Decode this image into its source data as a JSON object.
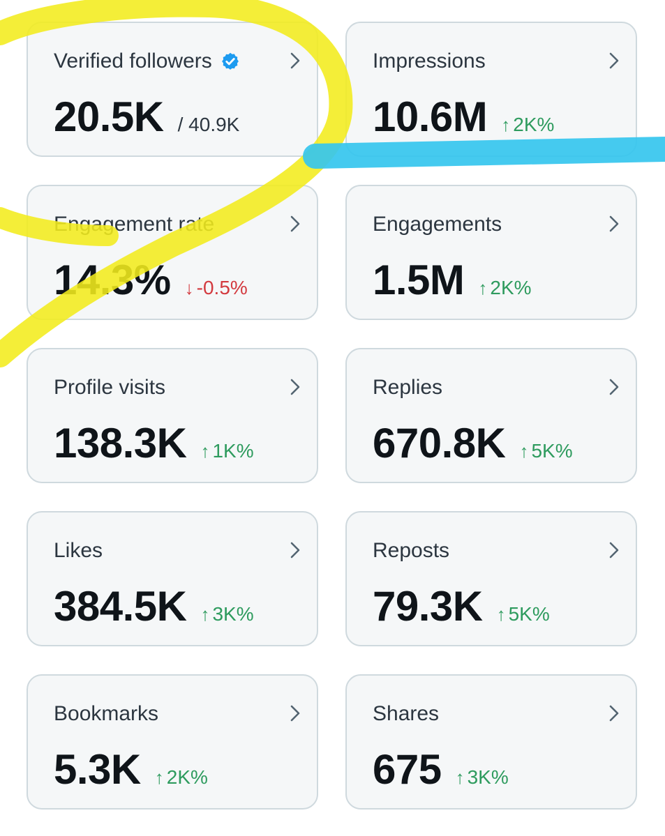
{
  "metrics": [
    {
      "label": "Verified followers",
      "value": "20.5K",
      "sub": "/ 40.9K",
      "verified": true
    },
    {
      "label": "Impressions",
      "value": "10.6M",
      "delta": "2K%",
      "direction": "up"
    },
    {
      "label": "Engagement rate",
      "value": "14.3%",
      "delta": "-0.5%",
      "direction": "down"
    },
    {
      "label": "Engagements",
      "value": "1.5M",
      "delta": "2K%",
      "direction": "up"
    },
    {
      "label": "Profile visits",
      "value": "138.3K",
      "delta": "1K%",
      "direction": "up"
    },
    {
      "label": "Replies",
      "value": "670.8K",
      "delta": "5K%",
      "direction": "up"
    },
    {
      "label": "Likes",
      "value": "384.5K",
      "delta": "3K%",
      "direction": "up"
    },
    {
      "label": "Reposts",
      "value": "79.3K",
      "delta": "5K%",
      "direction": "up"
    },
    {
      "label": "Bookmarks",
      "value": "5.3K",
      "delta": "2K%",
      "direction": "up"
    },
    {
      "label": "Shares",
      "value": "675",
      "delta": "3K%",
      "direction": "up"
    }
  ],
  "icons": {
    "arrow_up": "↑",
    "arrow_down": "↓",
    "chevron": "chevron-right-icon",
    "verified": "verified-badge-icon"
  },
  "colors": {
    "up": "#2e9b5e",
    "down": "#d33a3f",
    "verified": "#1d9bf0",
    "highlight_yellow": "#f2ec1c",
    "highlight_blue": "#35c6ee"
  }
}
